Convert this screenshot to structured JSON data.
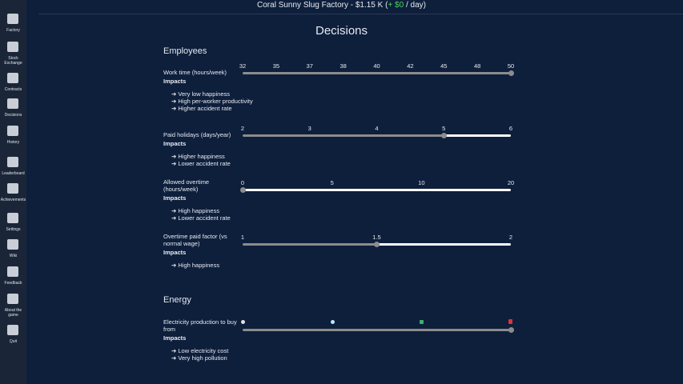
{
  "header": {
    "prefix": "Coral Sunny Slug Factory - $1.15 K (",
    "delta": "+ $0",
    "suffix": " / day)"
  },
  "sidebar": [
    "Factory",
    "Stock Exchange",
    "Contracts",
    "Decisions",
    "History",
    "Leaderboard",
    "Achievements",
    "Settings",
    "Wiki",
    "Feedback",
    "About the game",
    "Quit"
  ],
  "title": "Decisions",
  "sections": [
    {
      "title": "Employees",
      "sliders": [
        {
          "label": "Work time (hours/week)",
          "ticks": [
            32,
            35,
            37,
            38,
            40,
            42,
            45,
            48,
            50
          ],
          "value": 50,
          "impacts_title": "Impacts",
          "impacts": [
            "➔ Very low happiness",
            "➔ High per-worker productivity",
            "➔ Higher accident rate"
          ]
        },
        {
          "label": "Paid holidays (days/year)",
          "ticks": [
            2,
            3,
            4,
            5,
            6
          ],
          "value": 5,
          "impacts_title": "Impacts",
          "impacts": [
            "➔ Higher happiness",
            "➔ Lower accident rate"
          ]
        },
        {
          "label": "Allowed overtime (hours/week)",
          "ticks": [
            0,
            5,
            10,
            20
          ],
          "value": 0,
          "impacts_title": "Impacts",
          "impacts": [
            "➔ High happiness",
            "➔ Lower accident rate"
          ]
        },
        {
          "label": "Overtime paid factor (vs normal wage)",
          "ticks": [
            1,
            1.5,
            2
          ],
          "value": 1.5,
          "impacts_title": "Impacts",
          "impacts": [
            "➔ High happiness"
          ]
        }
      ]
    },
    {
      "title": "Energy",
      "sliders": [
        {
          "label": "Electricity production to buy from",
          "impacts_title": "Impacts",
          "impacts": [
            "➔ Low electricity cost",
            "➔ Very high pollution"
          ]
        }
      ]
    }
  ]
}
